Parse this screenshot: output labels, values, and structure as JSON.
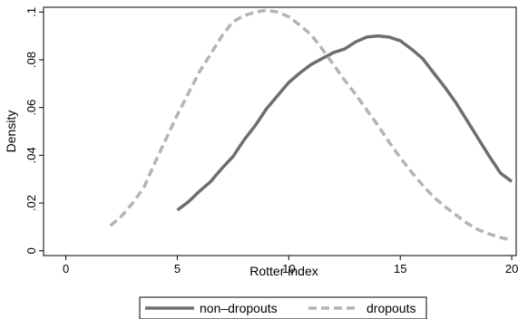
{
  "chart_data": {
    "type": "line",
    "title": "",
    "xlabel": "Rotter index",
    "ylabel": "Density",
    "xlim": [
      -1,
      20.2
    ],
    "ylim": [
      -0.002,
      0.102
    ],
    "x_ticks": [
      0,
      5,
      10,
      15,
      20
    ],
    "x_tick_labels": [
      "0",
      "5",
      "10",
      "15",
      "20"
    ],
    "y_ticks": [
      0,
      0.02,
      0.04,
      0.06,
      0.08,
      0.1
    ],
    "y_tick_labels": [
      "0",
      ".02",
      ".04",
      ".06",
      ".08",
      ".1"
    ],
    "grid": false,
    "legend_position": "bottom",
    "series": [
      {
        "name": "non–dropouts",
        "color": "#6e6e6e",
        "style": "solid",
        "x": [
          5,
          5.5,
          6,
          6.5,
          7,
          7.5,
          8,
          8.5,
          9,
          9.5,
          10,
          10.5,
          11,
          11.5,
          12,
          12.5,
          13,
          13.5,
          14,
          14.5,
          15,
          15.5,
          16,
          16.5,
          17,
          17.5,
          18,
          18.5,
          19,
          19.5,
          20
        ],
        "y": [
          0.017,
          0.0205,
          0.025,
          0.029,
          0.0345,
          0.0395,
          0.0465,
          0.0525,
          0.0595,
          0.065,
          0.0705,
          0.0745,
          0.078,
          0.0805,
          0.083,
          0.0845,
          0.0875,
          0.0895,
          0.09,
          0.0895,
          0.088,
          0.0845,
          0.0805,
          0.0745,
          0.0685,
          0.062,
          0.0545,
          0.047,
          0.0395,
          0.0325,
          0.029
        ]
      },
      {
        "name": "dropouts",
        "color": "#b4b4b4",
        "style": "dashed",
        "x": [
          2,
          2.5,
          3,
          3.5,
          4,
          4.5,
          5,
          5.5,
          6,
          6.5,
          7,
          7.5,
          8,
          8.5,
          9,
          9.5,
          10,
          10.5,
          11,
          11.5,
          12,
          12.5,
          13,
          13.5,
          14,
          14.5,
          15,
          15.5,
          16,
          16.5,
          17,
          17.5,
          18,
          18.5,
          19,
          19.5,
          20
        ],
        "y": [
          0.0105,
          0.0145,
          0.02,
          0.0265,
          0.037,
          0.047,
          0.057,
          0.066,
          0.075,
          0.0825,
          0.09,
          0.096,
          0.0985,
          0.1,
          0.1008,
          0.1,
          0.098,
          0.0945,
          0.0905,
          0.0845,
          0.078,
          0.0715,
          0.0655,
          0.059,
          0.0525,
          0.0455,
          0.039,
          0.033,
          0.0275,
          0.0225,
          0.0185,
          0.015,
          0.0115,
          0.0088,
          0.007,
          0.0055,
          0.0045
        ]
      }
    ]
  }
}
